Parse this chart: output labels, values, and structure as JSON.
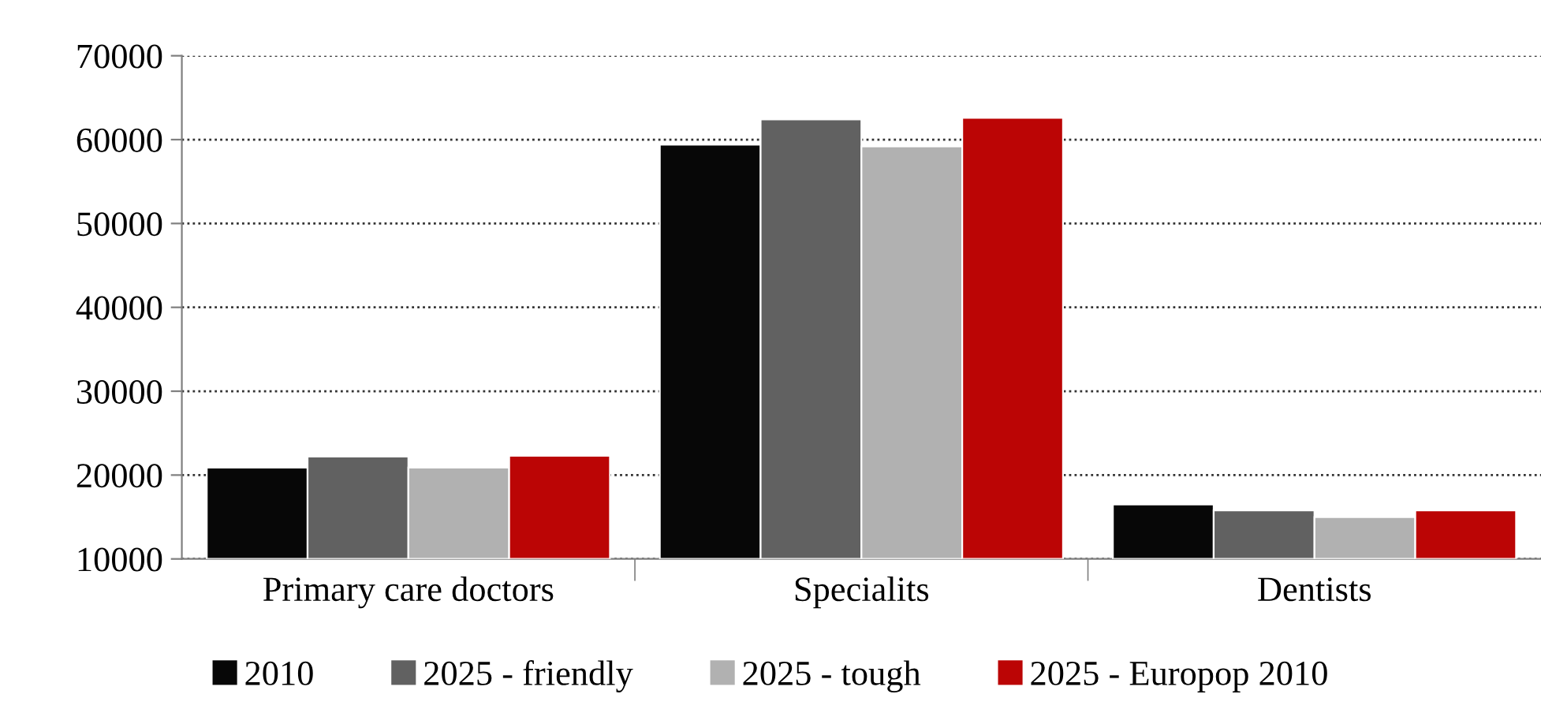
{
  "chart_data": {
    "type": "bar",
    "categories": [
      "Primary care doctors",
      "Specialits",
      "Dentists"
    ],
    "series": [
      {
        "name": "2010",
        "color": "#070707",
        "values": [
          20900,
          59400,
          16500
        ]
      },
      {
        "name": "2025 - friendly",
        "color": "#616161",
        "values": [
          22200,
          62400,
          15800
        ]
      },
      {
        "name": "2025 - tough",
        "color": "#b1b1b1",
        "values": [
          20900,
          59200,
          15000
        ]
      },
      {
        "name": "2025 - Europop 2010",
        "color": "#bb0505",
        "values": [
          22300,
          62600,
          15800
        ]
      }
    ],
    "ylim": [
      10000,
      70000
    ],
    "yticks": [
      10000,
      20000,
      30000,
      40000,
      50000,
      60000,
      70000
    ],
    "grid": "y",
    "legend": "bottom"
  }
}
